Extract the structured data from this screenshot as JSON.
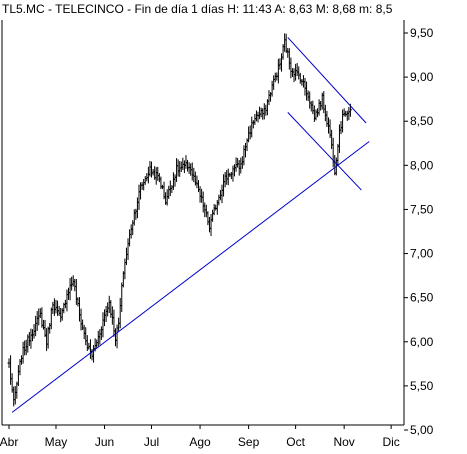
{
  "chart_data": {
    "type": "ohlc",
    "title": "TL5.MC - TELECINCO - Fin de día 1 días H: 11:43 A: 8,63 M: 8,68 m: 8,5",
    "xlabel": "",
    "ylabel": "",
    "ylim": [
      5.0,
      9.6
    ],
    "y_ticks": [
      "5,00",
      "5,50",
      "6,00",
      "6,50",
      "7,00",
      "7,50",
      "8,00",
      "8,50",
      "9,00",
      "9,50"
    ],
    "y_tick_values": [
      5.0,
      5.5,
      6.0,
      6.5,
      7.0,
      7.5,
      8.0,
      8.5,
      9.0,
      9.5
    ],
    "x_ticks": [
      "Abr",
      "May",
      "Jun",
      "Jul",
      "Ago",
      "Sep",
      "Oct",
      "Nov",
      "Dic"
    ],
    "x_range_days": [
      0,
      242
    ],
    "x_tick_days": [
      0,
      30,
      61,
      91,
      122,
      153,
      183,
      214,
      244
    ],
    "grid": false,
    "legend": "none",
    "colors": {
      "bars": "#000000",
      "trendlines": "#0000cc",
      "frame": "#000000",
      "background": "#ffffff"
    },
    "anchors": [
      {
        "day": 0,
        "close": 5.75
      },
      {
        "day": 3,
        "close": 5.3
      },
      {
        "day": 8,
        "close": 5.85
      },
      {
        "day": 13,
        "close": 6.05
      },
      {
        "day": 20,
        "close": 6.3
      },
      {
        "day": 24,
        "close": 6.0
      },
      {
        "day": 28,
        "close": 6.45
      },
      {
        "day": 33,
        "close": 6.25
      },
      {
        "day": 37,
        "close": 6.55
      },
      {
        "day": 41,
        "close": 6.7
      },
      {
        "day": 45,
        "close": 6.3
      },
      {
        "day": 50,
        "close": 5.95
      },
      {
        "day": 53,
        "close": 5.85
      },
      {
        "day": 57,
        "close": 6.05
      },
      {
        "day": 61,
        "close": 6.3
      },
      {
        "day": 64,
        "close": 6.45
      },
      {
        "day": 68,
        "close": 6.05
      },
      {
        "day": 70,
        "close": 6.2
      },
      {
        "day": 73,
        "close": 6.8
      },
      {
        "day": 78,
        "close": 7.3
      },
      {
        "day": 84,
        "close": 7.75
      },
      {
        "day": 90,
        "close": 7.95
      },
      {
        "day": 96,
        "close": 7.85
      },
      {
        "day": 100,
        "close": 7.6
      },
      {
        "day": 107,
        "close": 7.95
      },
      {
        "day": 115,
        "close": 8.0
      },
      {
        "day": 120,
        "close": 7.75
      },
      {
        "day": 124,
        "close": 7.55
      },
      {
        "day": 128,
        "close": 7.3
      },
      {
        "day": 133,
        "close": 7.6
      },
      {
        "day": 138,
        "close": 7.85
      },
      {
        "day": 143,
        "close": 7.95
      },
      {
        "day": 148,
        "close": 8.0
      },
      {
        "day": 152,
        "close": 8.3
      },
      {
        "day": 157,
        "close": 8.55
      },
      {
        "day": 163,
        "close": 8.6
      },
      {
        "day": 168,
        "close": 8.9
      },
      {
        "day": 173,
        "close": 9.15
      },
      {
        "day": 176,
        "close": 9.4
      },
      {
        "day": 180,
        "close": 9.1
      },
      {
        "day": 186,
        "close": 9.0
      },
      {
        "day": 191,
        "close": 8.8
      },
      {
        "day": 195,
        "close": 8.55
      },
      {
        "day": 200,
        "close": 8.75
      },
      {
        "day": 205,
        "close": 8.35
      },
      {
        "day": 208,
        "close": 7.95
      },
      {
        "day": 211,
        "close": 8.4
      },
      {
        "day": 214,
        "close": 8.6
      },
      {
        "day": 218,
        "close": 8.63
      }
    ],
    "trendlines": [
      {
        "from": {
          "day": 2,
          "value": 5.2
        },
        "to": {
          "day": 230,
          "value": 8.27
        }
      },
      {
        "from": {
          "day": 178,
          "value": 9.45
        },
        "to": {
          "day": 228,
          "value": 8.48
        }
      },
      {
        "from": {
          "day": 178,
          "value": 8.6
        },
        "to": {
          "day": 225,
          "value": 7.72
        }
      }
    ]
  }
}
